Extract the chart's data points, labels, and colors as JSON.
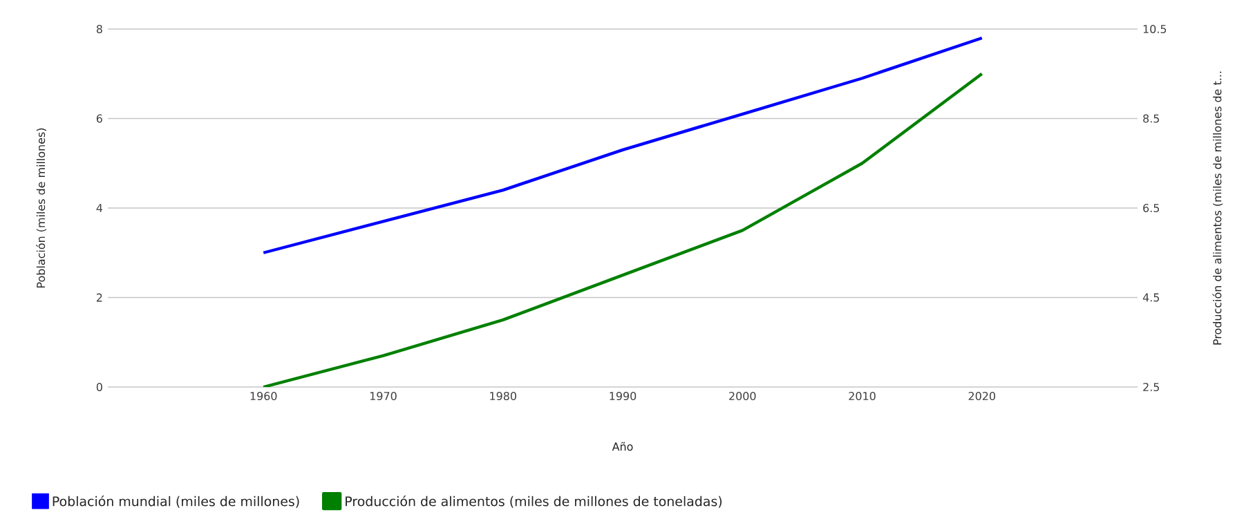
{
  "chart_data": {
    "type": "line",
    "xlabel": "Año",
    "ylabel": "Población (miles de millones)",
    "y2label": "Producción de alimentos (miles de millones de t...",
    "x": [
      1960,
      1970,
      1980,
      1990,
      2000,
      2010,
      2020
    ],
    "series": [
      {
        "name": "Población mundial (miles de millones)",
        "color": "#0000ff",
        "values": [
          3.0,
          3.7,
          4.4,
          5.3,
          6.1,
          6.9,
          7.8
        ]
      },
      {
        "name": "Producción de alimentos (miles de millones de toneladas)",
        "color": "#008000",
        "axis": "y2",
        "values": [
          2.5,
          3.2,
          4.0,
          5.0,
          6.0,
          7.5,
          9.5
        ]
      }
    ],
    "xlim": [
      1947,
      2033
    ],
    "xticks": [
      1960,
      1970,
      1980,
      1990,
      2000,
      2010,
      2020
    ],
    "ylim": [
      0,
      8
    ],
    "yticks": [
      0,
      2,
      4,
      6,
      8
    ],
    "y2lim": [
      2.5,
      10.5
    ],
    "y2ticks": [
      2.5,
      4.5,
      6.5,
      8.5,
      10.5
    ],
    "grid": "y",
    "legend": "bottom",
    "marker": "none",
    "line_style": "solid"
  }
}
